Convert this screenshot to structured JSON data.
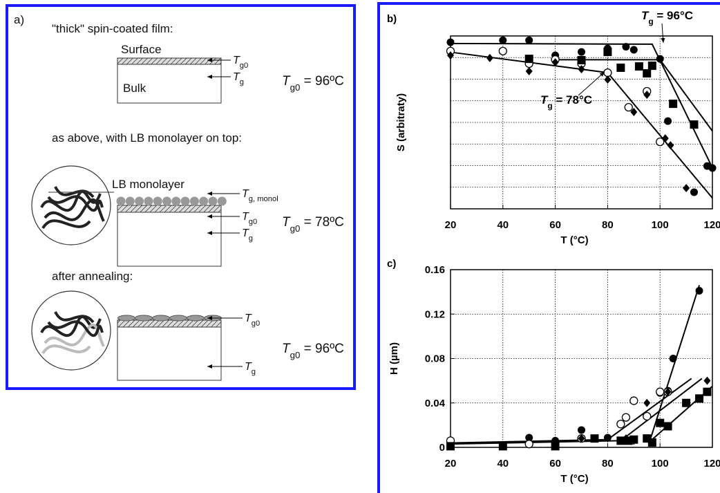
{
  "panel_a": {
    "label": "a)",
    "sections": [
      {
        "caption": "\"thick\" spin-coated film:",
        "layers": [
          "Surface",
          "Bulk"
        ],
        "arrows": [
          {
            "symbol": "T",
            "subscript": "g0"
          },
          {
            "symbol": "T",
            "subscript": "g"
          }
        ],
        "result": {
          "symbol": "T",
          "subscript": "g0",
          "rest": " = 96ºC"
        }
      },
      {
        "caption": "as above, with LB monolayer on top:",
        "layers": [
          "LB monolayer"
        ],
        "arrows": [
          {
            "symbol": "T",
            "subscript": "g, monol"
          },
          {
            "symbol": "T",
            "subscript": "g0"
          },
          {
            "symbol": "T",
            "subscript": "g"
          }
        ],
        "result": {
          "symbol": "T",
          "subscript": "g0",
          "rest": " = 78ºC"
        }
      },
      {
        "caption": "after annealing:",
        "arrows": [
          {
            "symbol": "T",
            "subscript": "g0"
          },
          {
            "symbol": "T",
            "subscript": "g"
          }
        ],
        "result": {
          "symbol": "T",
          "subscript": "g0",
          "rest": " = 96ºC"
        }
      }
    ]
  },
  "chart_data": [
    {
      "type": "scatter",
      "panel_label": "b)",
      "x_label": "T (°C)",
      "y_label": "S (arbitraty)",
      "xlim": [
        20,
        120
      ],
      "xticks": [
        20,
        40,
        60,
        80,
        100,
        120
      ],
      "ylim": [
        0,
        8
      ],
      "grid": true,
      "series": [
        {
          "marker": "circle-filled",
          "color": "#000",
          "x": [
            20,
            40,
            50,
            60,
            70,
            80,
            87,
            90,
            100,
            103,
            113,
            118,
            120
          ],
          "values": [
            7.71,
            7.8,
            7.8,
            7.1,
            7.26,
            7.42,
            7.5,
            7.36,
            6.94,
            4.06,
            0.77,
            1.98,
            1.89
          ]
        },
        {
          "marker": "circle-open",
          "color": "#000",
          "x": [
            20,
            40,
            50,
            60,
            70,
            80,
            88,
            95,
            100
          ],
          "values": [
            7.3,
            7.3,
            6.72,
            6.91,
            6.72,
            6.3,
            4.7,
            5.44,
            3.1
          ]
        },
        {
          "marker": "square",
          "color": "#000",
          "x": [
            50,
            70,
            80,
            85,
            92,
            95,
            97,
            105,
            113
          ],
          "values": [
            6.94,
            6.88,
            7.26,
            6.53,
            6.59,
            6.27,
            6.62,
            4.86,
            3.9
          ]
        },
        {
          "marker": "diamond",
          "color": "#000",
          "x": [
            20,
            35,
            50,
            60,
            70,
            80,
            90,
            95,
            102,
            104,
            110
          ],
          "values": [
            7.1,
            6.98,
            6.37,
            6.78,
            6.46,
            5.98,
            4.48,
            5.28,
            3.26,
            2.94,
            0.96
          ]
        }
      ],
      "fit_lines": [
        {
          "x": [
            20,
            97,
            120
          ],
          "values": [
            7.65,
            7.62,
            1.9
          ]
        },
        {
          "x": [
            20,
            80,
            120
          ],
          "values": [
            7.25,
            6.3,
            0.5
          ]
        },
        {
          "x": [
            60,
            100,
            120
          ],
          "values": [
            6.9,
            6.9,
            3.6
          ]
        }
      ],
      "annotations": [
        {
          "symbol": "T",
          "subscript": "g",
          "rest": " = 96°C"
        },
        {
          "symbol": "T",
          "subscript": "g",
          "rest": " = 78°C"
        }
      ]
    },
    {
      "type": "scatter",
      "panel_label": "c)",
      "x_label": "T (°C)",
      "y_label": "H (µm)",
      "xlim": [
        20,
        120
      ],
      "xticks": [
        20,
        40,
        60,
        80,
        100,
        120
      ],
      "ylim": [
        0,
        0.16
      ],
      "yticks": [
        0,
        0.04,
        0.08,
        0.12,
        0.16
      ],
      "grid": true,
      "series": [
        {
          "marker": "circle-filled",
          "color": "#000",
          "x": [
            20,
            50,
            60,
            70,
            80,
            90,
            100,
            103,
            105,
            115
          ],
          "values": [
            0.0044,
            0.0087,
            0.006,
            0.0156,
            0.0087,
            0.042,
            0.049,
            0.051,
            0.08,
            0.141
          ]
        },
        {
          "marker": "circle-open",
          "color": "#000",
          "x": [
            20,
            50,
            70,
            85,
            87,
            90,
            95,
            100,
            103
          ],
          "values": [
            0.006,
            0.003,
            0.008,
            0.021,
            0.027,
            0.042,
            0.028,
            0.05,
            0.05
          ]
        },
        {
          "marker": "square",
          "color": "#000",
          "x": [
            20,
            40,
            60,
            75,
            85,
            88,
            90,
            95,
            97,
            100,
            103,
            110,
            115,
            118
          ],
          "values": [
            0.001,
            0.001,
            0.001,
            0.008,
            0.006,
            0.006,
            0.007,
            0.008,
            0.0044,
            0.022,
            0.019,
            0.04,
            0.044,
            0.05
          ]
        },
        {
          "marker": "diamond",
          "color": "#000",
          "x": [
            70,
            87,
            90,
            95,
            103,
            118
          ],
          "values": [
            0.008,
            0.008,
            0.006,
            0.04,
            0.05,
            0.06
          ]
        }
      ],
      "fit_lines": [
        {
          "x": [
            20,
            80,
            112
          ],
          "values": [
            0.004,
            0.007,
            0.062
          ]
        },
        {
          "x": [
            20,
            85,
            116
          ],
          "values": [
            0.003,
            0.006,
            0.062
          ]
        },
        {
          "x": [
            96,
            115
          ],
          "values": [
            0.005,
            0.146
          ]
        },
        {
          "x": [
            96,
            120
          ],
          "values": [
            0.005,
            0.055
          ]
        }
      ]
    }
  ]
}
